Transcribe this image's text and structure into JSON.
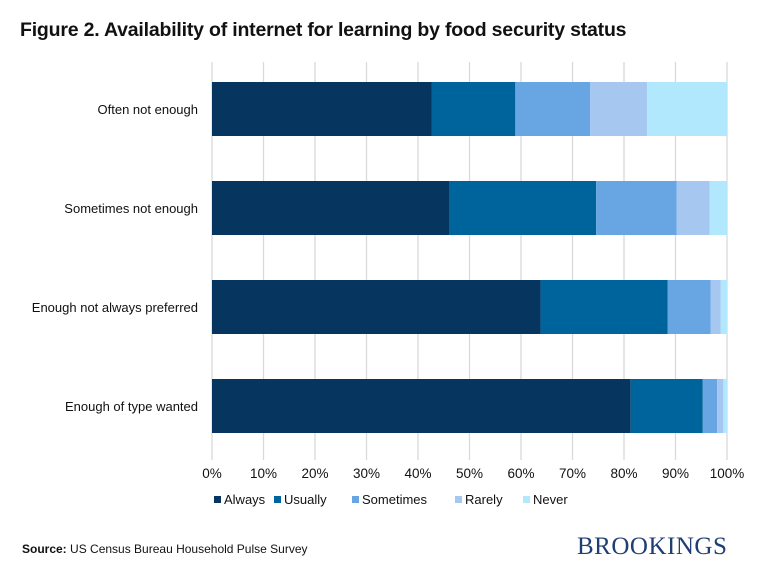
{
  "title": "Figure 2. Availability of internet for learning by food security status",
  "source_label": "Source:",
  "source_text": "US Census Bureau Household Pulse Survey",
  "logo": "BROOKINGS",
  "chart_data": {
    "type": "bar",
    "orientation": "horizontal",
    "stacked": "100%",
    "categories": [
      "Often not enough",
      "Sometimes not enough",
      "Enough not always preferred",
      "Enough of type wanted"
    ],
    "series": [
      {
        "name": "Always",
        "color": "#06355f",
        "values": [
          42.7,
          46.1,
          63.8,
          81.3
        ]
      },
      {
        "name": "Usually",
        "color": "#00649c",
        "values": [
          16.2,
          28.5,
          24.7,
          14.0
        ]
      },
      {
        "name": "Sometimes",
        "color": "#67a6e3",
        "values": [
          14.5,
          15.6,
          8.3,
          2.8
        ]
      },
      {
        "name": "Rarely",
        "color": "#a6c8f0",
        "values": [
          11.1,
          6.4,
          2.0,
          1.2
        ]
      },
      {
        "name": "Never",
        "color": "#b1e8fd",
        "values": [
          15.5,
          3.4,
          1.2,
          0.7
        ]
      }
    ],
    "xlim": [
      0,
      100
    ],
    "x_ticks": [
      "0%",
      "10%",
      "20%",
      "30%",
      "40%",
      "50%",
      "60%",
      "70%",
      "80%",
      "90%",
      "100%"
    ],
    "grid": true,
    "legend_position": "bottom"
  }
}
